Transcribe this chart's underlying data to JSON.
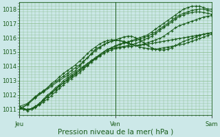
{
  "background_color": "#cce8e8",
  "plot_bg_color": "#cce8e8",
  "grid_color": "#88bb88",
  "line_color": "#1a5c1a",
  "marker_color": "#1a5c1a",
  "xlabel": "Pression niveau de la mer( hPa )",
  "xlabel_fontsize": 7.5,
  "yticks": [
    1011,
    1012,
    1013,
    1014,
    1015,
    1016,
    1017,
    1018
  ],
  "ylim": [
    1010.6,
    1018.5
  ],
  "xlim": [
    0,
    48
  ],
  "xtick_positions": [
    0,
    24,
    48
  ],
  "xtick_labels": [
    "Jeu",
    "Ven",
    "Sam"
  ],
  "series": [
    {
      "x": [
        0,
        1,
        2,
        3,
        4,
        5,
        6,
        7,
        8,
        9,
        10,
        11,
        12,
        13,
        14,
        15,
        16,
        17,
        18,
        19,
        20,
        21,
        22,
        23,
        24,
        25,
        26,
        27,
        28,
        29,
        30,
        31,
        32,
        33,
        34,
        35,
        36,
        37,
        38,
        39,
        40,
        41,
        42,
        43,
        44,
        45,
        46,
        47,
        48
      ],
      "y": [
        1011.0,
        1011.0,
        1010.9,
        1011.0,
        1011.2,
        1011.4,
        1011.7,
        1012.0,
        1012.2,
        1012.5,
        1012.7,
        1013.0,
        1013.2,
        1013.4,
        1013.6,
        1013.8,
        1014.0,
        1014.2,
        1014.4,
        1014.6,
        1014.8,
        1015.0,
        1015.2,
        1015.3,
        1015.4,
        1015.5,
        1015.6,
        1015.7,
        1015.8,
        1015.9,
        1016.0,
        1016.1,
        1016.2,
        1016.4,
        1016.6,
        1016.8,
        1017.0,
        1017.2,
        1017.4,
        1017.6,
        1017.8,
        1018.0,
        1018.1,
        1018.2,
        1018.2,
        1018.2,
        1018.1,
        1018.0,
        1018.0
      ]
    },
    {
      "x": [
        0,
        1,
        2,
        3,
        4,
        5,
        6,
        7,
        8,
        9,
        10,
        11,
        12,
        13,
        14,
        15,
        16,
        17,
        18,
        19,
        20,
        21,
        22,
        23,
        24,
        25,
        26,
        27,
        28,
        29,
        30,
        31,
        32,
        33,
        34,
        35,
        36,
        37,
        38,
        39,
        40,
        41,
        42,
        43,
        44,
        45,
        46,
        47,
        48
      ],
      "y": [
        1011.1,
        1011.0,
        1010.95,
        1011.0,
        1011.15,
        1011.35,
        1011.6,
        1011.85,
        1012.1,
        1012.35,
        1012.6,
        1012.85,
        1013.1,
        1013.3,
        1013.5,
        1013.7,
        1013.9,
        1014.1,
        1014.35,
        1014.55,
        1014.75,
        1015.0,
        1015.15,
        1015.3,
        1015.45,
        1015.55,
        1015.65,
        1015.7,
        1015.75,
        1015.8,
        1015.9,
        1016.0,
        1016.1,
        1016.25,
        1016.4,
        1016.6,
        1016.8,
        1017.0,
        1017.2,
        1017.4,
        1017.6,
        1017.7,
        1017.8,
        1017.9,
        1017.95,
        1018.0,
        1018.0,
        1017.9,
        1017.85
      ]
    },
    {
      "x": [
        0,
        1,
        2,
        3,
        4,
        5,
        6,
        7,
        8,
        9,
        10,
        11,
        12,
        13,
        14,
        15,
        16,
        17,
        18,
        19,
        20,
        21,
        22,
        23,
        24,
        25,
        26,
        27,
        28,
        29,
        30,
        31,
        32,
        33,
        34,
        35,
        36,
        37,
        38,
        39,
        40,
        41,
        42,
        43,
        44,
        45,
        46,
        47,
        48
      ],
      "y": [
        1011.1,
        1011.05,
        1011.0,
        1011.05,
        1011.2,
        1011.4,
        1011.65,
        1011.9,
        1012.15,
        1012.4,
        1012.65,
        1012.85,
        1013.05,
        1013.25,
        1013.45,
        1013.7,
        1013.95,
        1014.2,
        1014.4,
        1014.6,
        1014.8,
        1015.0,
        1015.15,
        1015.25,
        1015.3,
        1015.35,
        1015.4,
        1015.45,
        1015.5,
        1015.6,
        1015.7,
        1015.85,
        1015.95,
        1016.1,
        1016.3,
        1016.5,
        1016.7,
        1016.9,
        1017.1,
        1017.3,
        1017.5,
        1017.6,
        1017.7,
        1017.75,
        1017.8,
        1017.8,
        1017.75,
        1017.7,
        1017.65
      ]
    },
    {
      "x": [
        0,
        2,
        4,
        6,
        8,
        10,
        12,
        14,
        15,
        16,
        17,
        18,
        19,
        20,
        21,
        22,
        23,
        24,
        25,
        26,
        27,
        28,
        29,
        30,
        31,
        32,
        33,
        34,
        35,
        36,
        37,
        38,
        39,
        40,
        41,
        42,
        43,
        44,
        45,
        46,
        47,
        48
      ],
      "y": [
        1011.0,
        1011.3,
        1011.8,
        1012.2,
        1012.6,
        1013.0,
        1013.35,
        1013.7,
        1014.0,
        1014.3,
        1014.6,
        1014.9,
        1015.2,
        1015.35,
        1015.5,
        1015.65,
        1015.75,
        1015.85,
        1015.95,
        1016.05,
        1016.1,
        1016.1,
        1016.0,
        1015.85,
        1015.65,
        1015.45,
        1015.3,
        1015.2,
        1015.15,
        1015.15,
        1015.2,
        1015.3,
        1015.45,
        1015.6,
        1015.75,
        1015.85,
        1015.95,
        1016.05,
        1016.15,
        1016.25,
        1016.3,
        1016.35
      ]
    },
    {
      "x": [
        0,
        2,
        4,
        5,
        6,
        7,
        8,
        9,
        10,
        11,
        12,
        13,
        14,
        15,
        16,
        17,
        18,
        19,
        20,
        21,
        22,
        23,
        24,
        25,
        26,
        27,
        28,
        29,
        30,
        31,
        32,
        33,
        34,
        35,
        36,
        37,
        38,
        39,
        40,
        41,
        42,
        43,
        44,
        45,
        46,
        47,
        48
      ],
      "y": [
        1011.2,
        1011.4,
        1011.9,
        1012.1,
        1012.3,
        1012.5,
        1012.8,
        1013.0,
        1013.25,
        1013.5,
        1013.7,
        1013.9,
        1014.1,
        1014.35,
        1014.6,
        1014.9,
        1015.15,
        1015.35,
        1015.55,
        1015.7,
        1015.8,
        1015.85,
        1015.85,
        1015.8,
        1015.7,
        1015.6,
        1015.5,
        1015.45,
        1015.45,
        1015.5,
        1015.55,
        1015.6,
        1015.65,
        1015.7,
        1015.75,
        1015.8,
        1015.85,
        1015.9,
        1015.95,
        1016.0,
        1016.05,
        1016.1,
        1016.15,
        1016.2,
        1016.25,
        1016.3,
        1016.35
      ]
    },
    {
      "x": [
        0,
        2,
        4,
        6,
        8,
        10,
        11,
        12,
        13,
        14,
        15,
        16,
        17,
        18,
        19,
        20,
        21,
        22,
        23,
        24,
        25,
        26,
        27,
        28,
        29,
        30,
        31,
        32,
        33,
        34,
        35,
        36,
        37,
        38,
        39,
        40,
        41,
        42,
        43,
        44,
        45,
        46,
        47,
        48
      ],
      "y": [
        1011.05,
        1011.35,
        1011.85,
        1012.25,
        1012.7,
        1013.1,
        1013.3,
        1013.5,
        1013.7,
        1013.9,
        1014.1,
        1014.35,
        1014.6,
        1014.85,
        1015.1,
        1015.3,
        1015.5,
        1015.65,
        1015.75,
        1015.8,
        1015.8,
        1015.75,
        1015.65,
        1015.55,
        1015.45,
        1015.35,
        1015.3,
        1015.25,
        1015.2,
        1015.2,
        1015.25,
        1015.3,
        1015.35,
        1015.4,
        1015.45,
        1015.5,
        1015.55,
        1015.65,
        1015.75,
        1015.85,
        1015.95,
        1016.05,
        1016.15,
        1016.25
      ]
    },
    {
      "x": [
        0,
        1,
        2,
        3,
        4,
        5,
        6,
        7,
        8,
        9,
        10,
        11,
        12,
        13,
        14,
        15,
        16,
        17,
        18,
        19,
        20,
        21,
        22,
        23,
        24,
        25,
        26,
        27,
        28,
        29,
        30,
        31,
        32,
        33,
        34,
        35,
        36,
        37,
        38,
        39,
        40,
        41,
        42,
        43,
        44,
        45,
        46,
        47,
        48
      ],
      "y": [
        1011.2,
        1011.0,
        1010.95,
        1011.0,
        1011.1,
        1011.3,
        1011.5,
        1011.7,
        1011.95,
        1012.2,
        1012.45,
        1012.7,
        1012.95,
        1013.15,
        1013.35,
        1013.55,
        1013.8,
        1014.05,
        1014.3,
        1014.5,
        1014.7,
        1014.9,
        1015.05,
        1015.15,
        1015.25,
        1015.3,
        1015.35,
        1015.38,
        1015.4,
        1015.45,
        1015.5,
        1015.55,
        1015.65,
        1015.75,
        1015.85,
        1015.95,
        1016.1,
        1016.3,
        1016.5,
        1016.7,
        1016.85,
        1016.95,
        1017.05,
        1017.15,
        1017.25,
        1017.35,
        1017.45,
        1017.5,
        1017.55
      ]
    }
  ]
}
